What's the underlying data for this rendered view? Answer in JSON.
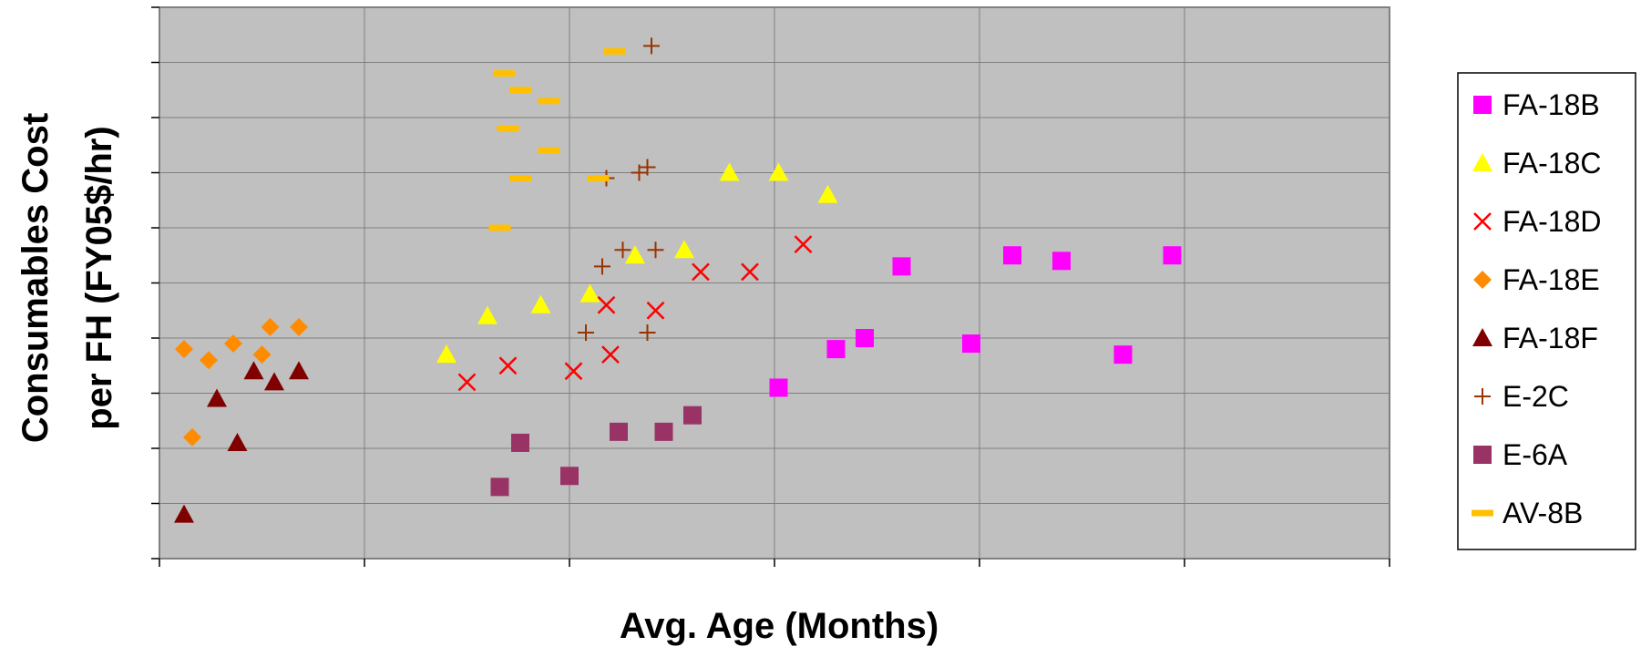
{
  "chart_data": {
    "type": "scatter",
    "xlabel": "Avg. Age (Months)",
    "ylabel_lines": [
      "Consumables Cost",
      "per FH (FY05$/hr)"
    ],
    "xlim": [
      0,
      300
    ],
    "ylim": [
      0,
      10
    ],
    "x_grid_step": 50,
    "y_grid_step": 1,
    "grid": true,
    "tick_labels_shown": false,
    "plot_background": "#c0c0c0",
    "legend_position": "right",
    "series": [
      {
        "name": "FA-18B",
        "marker": "square",
        "color": "#ff00ff",
        "points": [
          [
            151,
            3.1
          ],
          [
            165,
            3.8
          ],
          [
            172,
            4.0
          ],
          [
            181,
            5.3
          ],
          [
            198,
            3.9
          ],
          [
            208,
            5.5
          ],
          [
            220,
            5.4
          ],
          [
            235,
            3.7
          ],
          [
            247,
            5.5
          ]
        ]
      },
      {
        "name": "FA-18C",
        "marker": "triangle",
        "color": "#ffff00",
        "points": [
          [
            70,
            3.7
          ],
          [
            80,
            4.4
          ],
          [
            93,
            4.6
          ],
          [
            105,
            4.8
          ],
          [
            116,
            5.5
          ],
          [
            128,
            5.6
          ],
          [
            139,
            7.0
          ],
          [
            151,
            7.0
          ],
          [
            163,
            6.6
          ]
        ]
      },
      {
        "name": "FA-18D",
        "marker": "x",
        "color": "#ff0000",
        "points": [
          [
            75,
            3.2
          ],
          [
            85,
            3.5
          ],
          [
            101,
            3.4
          ],
          [
            109,
            4.6
          ],
          [
            110,
            3.7
          ],
          [
            121,
            4.5
          ],
          [
            132,
            5.2
          ],
          [
            144,
            5.2
          ],
          [
            157,
            5.7
          ]
        ]
      },
      {
        "name": "FA-18E",
        "marker": "diamond",
        "color": "#ff8c00",
        "points": [
          [
            6,
            3.8
          ],
          [
            8,
            2.2
          ],
          [
            12,
            3.6
          ],
          [
            18,
            3.9
          ],
          [
            25,
            3.7
          ],
          [
            27,
            4.2
          ],
          [
            34,
            4.2
          ]
        ]
      },
      {
        "name": "FA-18F",
        "marker": "triangle",
        "color": "#800000",
        "points": [
          [
            6,
            0.8
          ],
          [
            14,
            2.9
          ],
          [
            19,
            2.1
          ],
          [
            23,
            3.4
          ],
          [
            28,
            3.2
          ],
          [
            34,
            3.4
          ]
        ]
      },
      {
        "name": "E-2C",
        "marker": "plus",
        "color": "#993300",
        "points": [
          [
            104,
            4.1
          ],
          [
            108,
            5.3
          ],
          [
            109,
            6.9
          ],
          [
            113,
            5.6
          ],
          [
            117,
            7.0
          ],
          [
            119,
            7.1
          ],
          [
            119,
            4.1
          ],
          [
            120,
            9.3
          ],
          [
            121,
            5.6
          ]
        ]
      },
      {
        "name": "E-6A",
        "marker": "square",
        "color": "#993366",
        "points": [
          [
            83,
            1.3
          ],
          [
            88,
            2.1
          ],
          [
            100,
            1.5
          ],
          [
            112,
            2.3
          ],
          [
            123,
            2.3
          ],
          [
            130,
            2.6
          ]
        ]
      },
      {
        "name": "AV-8B",
        "marker": "dash",
        "color": "#ffc000",
        "points": [
          [
            83,
            6.0
          ],
          [
            84,
            8.8
          ],
          [
            85,
            7.8
          ],
          [
            88,
            6.9
          ],
          [
            88,
            8.5
          ],
          [
            95,
            8.3
          ],
          [
            95,
            7.4
          ],
          [
            107,
            6.9
          ],
          [
            111,
            9.2
          ]
        ]
      }
    ]
  }
}
